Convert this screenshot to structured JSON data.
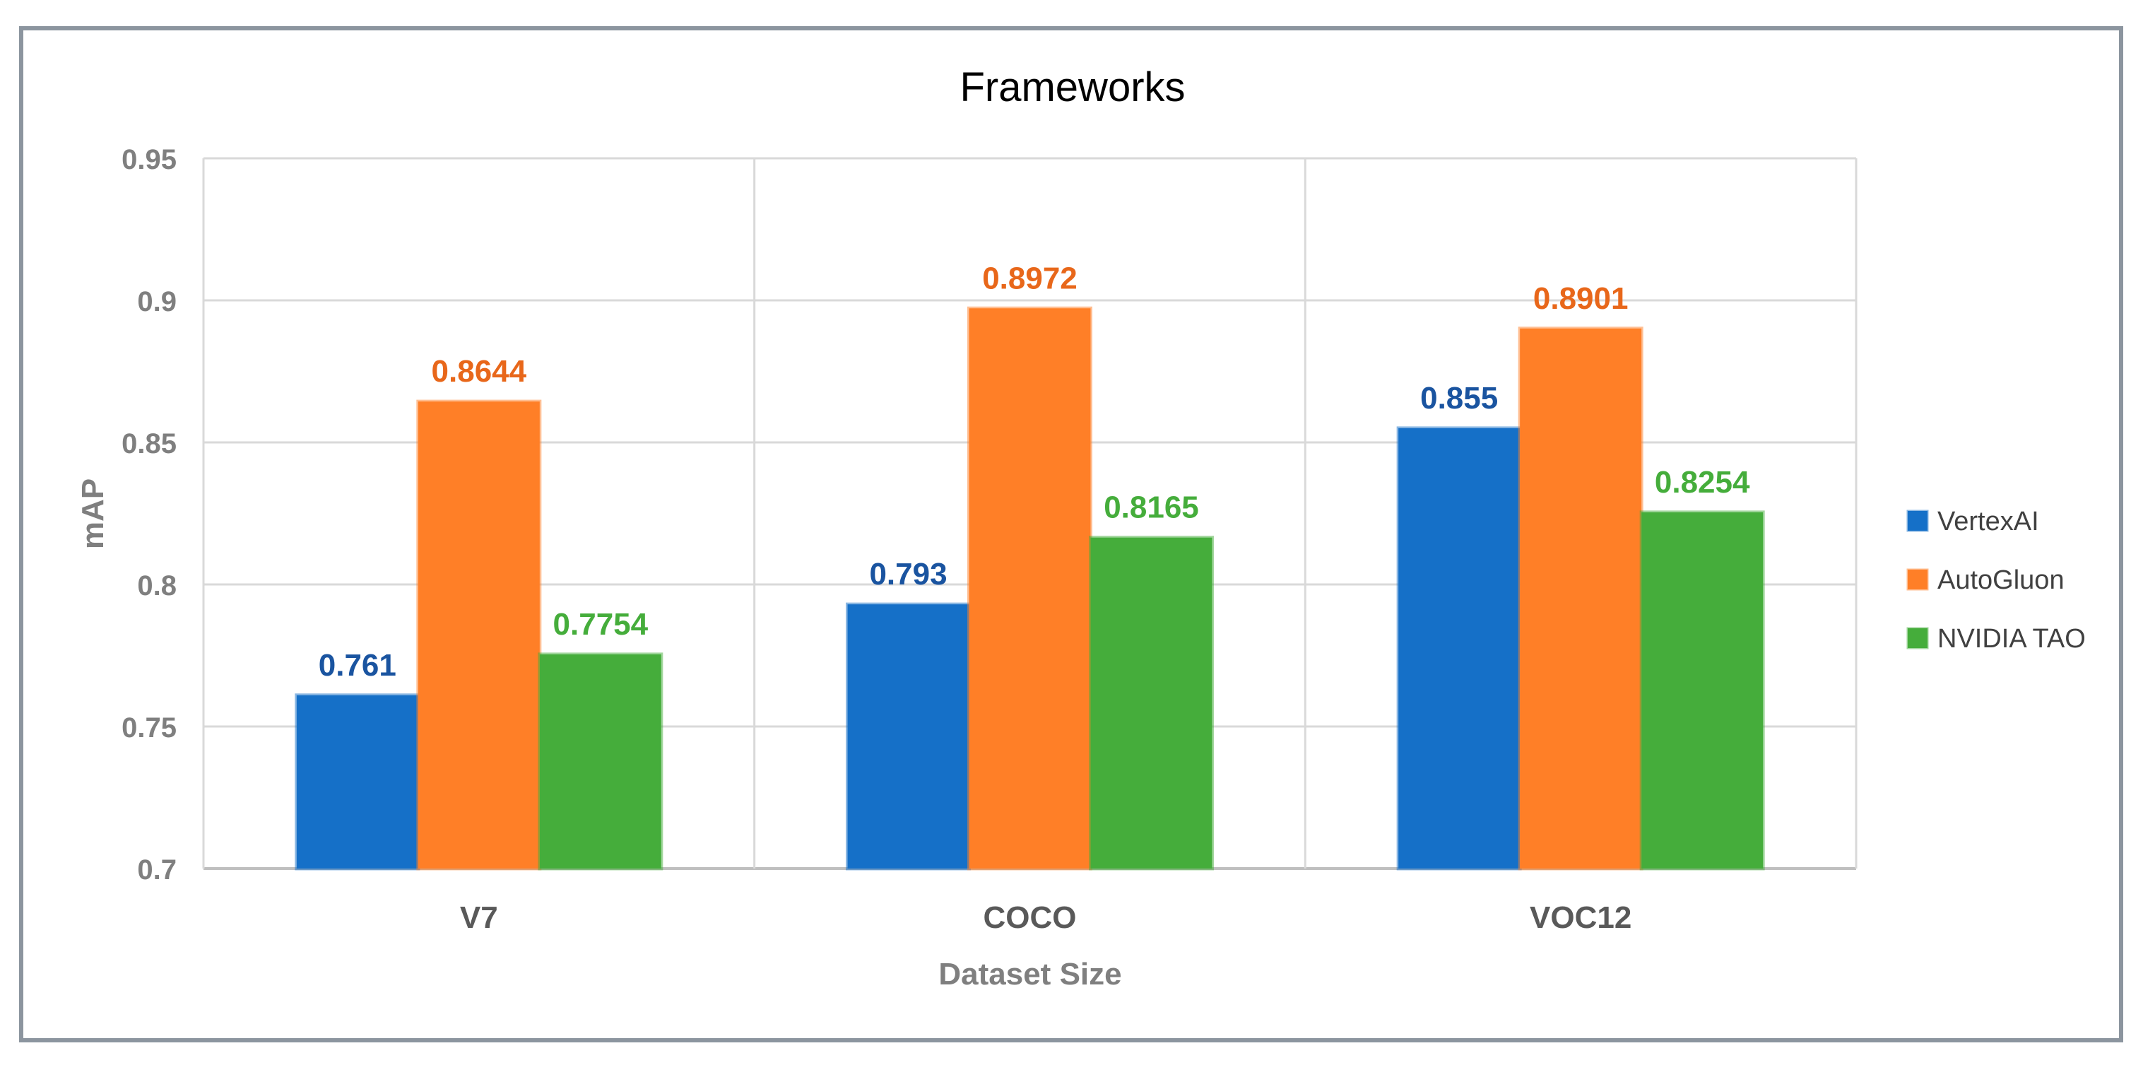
{
  "chart_data": {
    "type": "bar",
    "title": "Frameworks",
    "xlabel": "Dataset Size",
    "ylabel": "mAP",
    "ylim": [
      0.7,
      0.95
    ],
    "yticks": [
      "0.7",
      "0.75",
      "0.8",
      "0.85",
      "0.9",
      "0.95"
    ],
    "ytick_values": [
      0.7,
      0.75,
      0.8,
      0.85,
      0.9,
      0.95
    ],
    "categories": [
      "V7",
      "COCO",
      "VOC12"
    ],
    "series": [
      {
        "name": "VertexAI",
        "values": [
          0.761,
          0.793,
          0.855
        ],
        "labels": [
          "0.761",
          "0.793",
          "0.855"
        ],
        "color": "#1570C8",
        "label_color": "#1A54A0"
      },
      {
        "name": "AutoGluon",
        "values": [
          0.8644,
          0.8972,
          0.8901
        ],
        "labels": [
          "0.8644",
          "0.8972",
          "0.8901"
        ],
        "color": "#FF7F27",
        "label_color": "#E8671A"
      },
      {
        "name": "NVIDIA TAO",
        "values": [
          0.7754,
          0.8165,
          0.8254
        ],
        "labels": [
          "0.7754",
          "0.8165",
          "0.8254"
        ],
        "color": "#45AD3B",
        "label_color": "#45AD3B"
      }
    ],
    "grid": true,
    "legend_position": "right"
  }
}
